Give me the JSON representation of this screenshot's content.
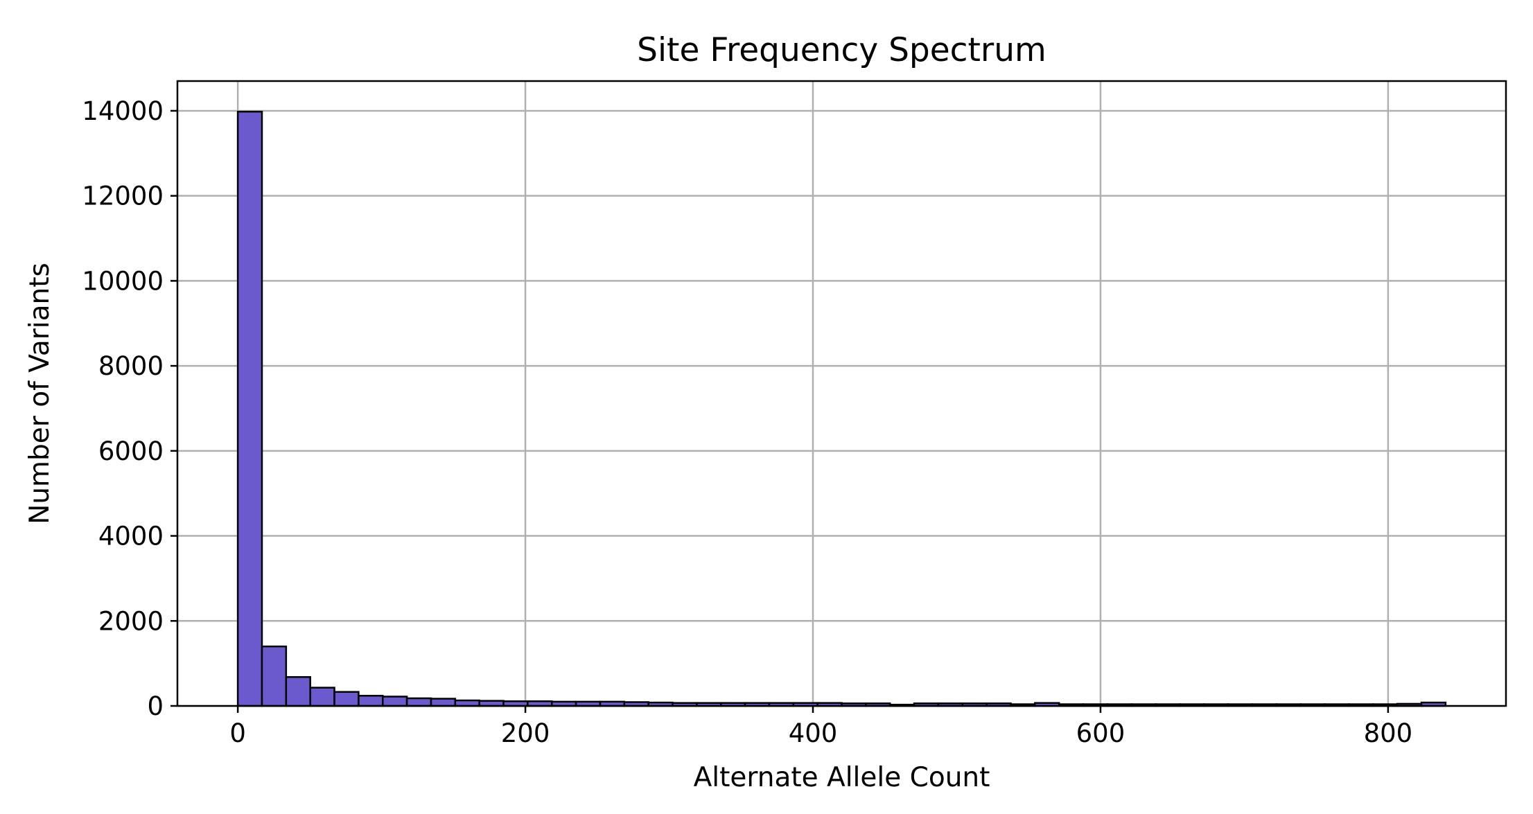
{
  "chart_data": {
    "type": "bar",
    "title": "Site Frequency Spectrum",
    "xlabel": "Alternate Allele Count",
    "ylabel": "Number of Variants",
    "xlim": [
      -42,
      882
    ],
    "ylim": [
      0,
      14700
    ],
    "xticks": [
      0,
      200,
      400,
      600,
      800
    ],
    "yticks": [
      0,
      2000,
      4000,
      6000,
      8000,
      10000,
      12000,
      14000
    ],
    "grid": true,
    "bar_color": "#6a5acd",
    "edge_color": "#000000",
    "bin_edges": [
      0,
      16.8,
      33.6,
      50.4,
      67.2,
      84.0,
      100.8,
      117.6,
      134.4,
      151.2,
      168.0,
      184.8,
      201.6,
      218.4,
      235.2,
      252.0,
      268.8,
      285.6,
      302.4,
      319.2,
      336.0,
      352.8,
      369.6,
      386.4,
      403.2,
      420.0,
      436.8,
      453.6,
      470.4,
      487.2,
      504.0,
      520.8,
      537.6,
      554.4,
      571.2,
      588.0,
      604.8,
      621.6,
      638.4,
      655.2,
      672.0,
      688.8,
      705.6,
      722.4,
      739.2,
      756.0,
      772.8,
      789.6,
      806.4,
      823.2,
      840.0
    ],
    "counts": [
      13980,
      1400,
      680,
      430,
      330,
      240,
      220,
      180,
      170,
      130,
      120,
      110,
      110,
      100,
      100,
      100,
      90,
      80,
      70,
      70,
      70,
      70,
      70,
      70,
      70,
      60,
      60,
      30,
      60,
      60,
      60,
      60,
      40,
      70,
      40,
      40,
      40,
      40,
      40,
      40,
      40,
      40,
      40,
      40,
      40,
      40,
      40,
      40,
      50,
      80
    ]
  }
}
